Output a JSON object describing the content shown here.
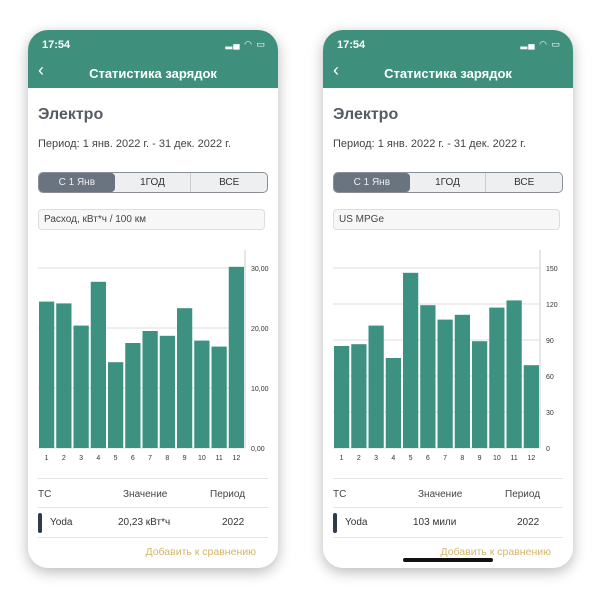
{
  "phones": [
    {
      "status": {
        "time": "17:54",
        "icons": "signal-wifi-battery-charging-icons"
      },
      "header": {
        "title": "Статистика зарядок",
        "back_icon": "chevron-left-icon"
      },
      "heading": "Электро",
      "period": "Период: 1 янв. 2022 г. - 31 дек. 2022 г.",
      "segments": [
        "С 1 Янв",
        "1ГОД",
        "ВСЕ"
      ],
      "selected_segment": "С 1 Янв",
      "metric": "Расход, кВт*ч / 100 км",
      "table": {
        "headers": [
          "ТС",
          "Значение",
          "Период"
        ],
        "row": {
          "vehicle": "Yoda",
          "value": "20,23 кВт*ч",
          "period": "2022"
        }
      },
      "add_link": "Добавить к сравнению"
    },
    {
      "status": {
        "time": "17:54",
        "icons": "signal-wifi-battery-charging-icons"
      },
      "header": {
        "title": "Статистика зарядок",
        "back_icon": "chevron-left-icon"
      },
      "heading": "Электро",
      "period": "Период: 1 янв. 2022 г. - 31 дек. 2022 г.",
      "segments": [
        "С 1 Янв",
        "1ГОД",
        "ВСЕ"
      ],
      "selected_segment": "С 1 Янв",
      "metric": "US MPGe",
      "table": {
        "headers": [
          "ТС",
          "Значение",
          "Период"
        ],
        "row": {
          "vehicle": "Yoda",
          "value": "103 мили",
          "period": "2022"
        }
      },
      "add_link": "Добавить к сравнению"
    }
  ],
  "colors": {
    "header": "#3f8f7d",
    "bar": "#3d9180",
    "link": "#d1b56a",
    "selected_segment": "#6a7380"
  },
  "chart_data": [
    {
      "type": "bar",
      "categories": [
        "1",
        "2",
        "3",
        "4",
        "5",
        "6",
        "7",
        "8",
        "9",
        "10",
        "11",
        "12"
      ],
      "values": [
        24.4,
        24.1,
        20.4,
        27.7,
        14.3,
        17.5,
        19.5,
        18.7,
        23.3,
        17.9,
        16.9,
        30.2
      ],
      "ylim": [
        0,
        30
      ],
      "yticks": [
        "0,00",
        "10,00",
        "20,00",
        "30,00"
      ],
      "ytick_values": [
        0,
        10,
        20,
        30
      ],
      "yaxis": "right",
      "grid": true
    },
    {
      "type": "bar",
      "categories": [
        "1",
        "2",
        "3",
        "4",
        "5",
        "6",
        "7",
        "8",
        "9",
        "10",
        "11",
        "12"
      ],
      "values": [
        85,
        86.5,
        102,
        75,
        146,
        119,
        107,
        111,
        89,
        117,
        123,
        69
      ],
      "ylim": [
        0,
        150
      ],
      "yticks": [
        "0",
        "30",
        "60",
        "90",
        "120",
        "150"
      ],
      "ytick_values": [
        0,
        30,
        60,
        90,
        120,
        150
      ],
      "yaxis": "right",
      "grid": true
    }
  ]
}
